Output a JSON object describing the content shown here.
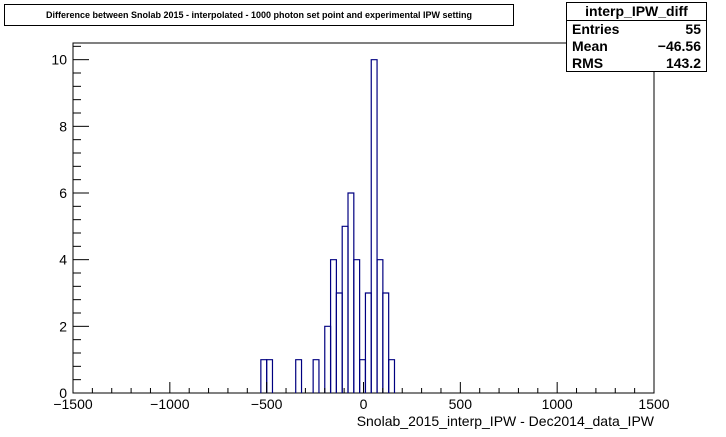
{
  "chart_data": {
    "type": "histogram",
    "title": "Difference between Snolab 2015 - interpolated - 1000 photon set point and experimental IPW setting",
    "xlabel": "Snolab_2015_interp_IPW - Dec2014_data_IPW",
    "ylabel": "",
    "xlim": [
      -1500,
      1500
    ],
    "ylim": [
      0,
      10.5
    ],
    "x_ticks": [
      -1500,
      -1000,
      -500,
      0,
      500,
      1000,
      1500
    ],
    "x_tick_labels": [
      "−1500",
      "−1000",
      "−500",
      "0",
      "500",
      "1000",
      "1500"
    ],
    "y_ticks": [
      0,
      2,
      4,
      6,
      8,
      10
    ],
    "y_tick_labels": [
      "0",
      "2",
      "4",
      "6",
      "8",
      "10"
    ],
    "bin_width": 30,
    "bins": [
      {
        "x": -530,
        "value": 1
      },
      {
        "x": -500,
        "value": 1
      },
      {
        "x": -350,
        "value": 1
      },
      {
        "x": -260,
        "value": 1
      },
      {
        "x": -200,
        "value": 2
      },
      {
        "x": -170,
        "value": 4
      },
      {
        "x": -140,
        "value": 3
      },
      {
        "x": -110,
        "value": 5
      },
      {
        "x": -80,
        "value": 6
      },
      {
        "x": -50,
        "value": 4
      },
      {
        "x": -20,
        "value": 1
      },
      {
        "x": 10,
        "value": 3
      },
      {
        "x": 40,
        "value": 10
      },
      {
        "x": 70,
        "value": 4
      },
      {
        "x": 100,
        "value": 3
      },
      {
        "x": 130,
        "value": 1
      }
    ],
    "line_color": "#000080",
    "grid": false
  },
  "stats": {
    "name": "interp_IPW_diff",
    "rows": [
      {
        "label": "Entries",
        "value": "55"
      },
      {
        "label": "Mean",
        "value": "−46.56"
      },
      {
        "label": "RMS",
        "value": "143.2"
      }
    ]
  }
}
